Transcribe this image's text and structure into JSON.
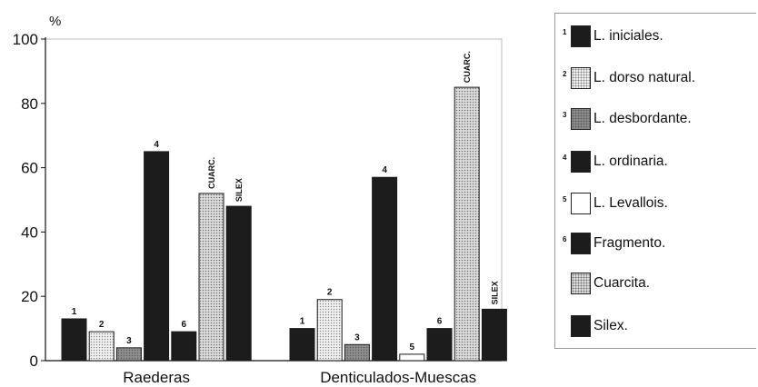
{
  "chart_data": {
    "type": "bar",
    "ylabel": "%",
    "ylim": [
      0,
      100
    ],
    "yticks": [
      0,
      20,
      40,
      60,
      80,
      100
    ],
    "groups": [
      {
        "label": "Raederas",
        "bars": [
          {
            "key": "1",
            "value": 13,
            "label": "1",
            "series": "L. iniciales."
          },
          {
            "key": "2",
            "value": 9,
            "label": "2",
            "series": "L. dorso natural."
          },
          {
            "key": "3",
            "value": 4,
            "label": "3",
            "series": "L. desbordante."
          },
          {
            "key": "4",
            "value": 65,
            "label": "4",
            "series": "L. ordinaria."
          },
          {
            "key": "6",
            "value": 9,
            "label": "6",
            "series": "Fragmento."
          },
          {
            "key": "cuarc",
            "value": 52,
            "label": "CUARC.",
            "series": "Cuarcita."
          },
          {
            "key": "silex",
            "value": 48,
            "label": "SILEX",
            "series": "Silex."
          }
        ]
      },
      {
        "label": "Denticulados-Muescas",
        "bars": [
          {
            "key": "1",
            "value": 10,
            "label": "1",
            "series": "L. iniciales."
          },
          {
            "key": "2",
            "value": 19,
            "label": "2",
            "series": "L. dorso natural."
          },
          {
            "key": "3",
            "value": 5,
            "label": "3",
            "series": "L. desbordante."
          },
          {
            "key": "4",
            "value": 57,
            "label": "4",
            "series": "L. ordinaria."
          },
          {
            "key": "5",
            "value": 2,
            "label": "5",
            "series": "L. Levallois."
          },
          {
            "key": "6",
            "value": 10,
            "label": "6",
            "series": "Fragmento."
          },
          {
            "key": "cuarc",
            "value": 85,
            "label": "CUARC.",
            "series": "Cuarcita."
          },
          {
            "key": "silex",
            "value": 16,
            "label": "SILEX",
            "series": "Silex."
          }
        ]
      }
    ],
    "legend": {
      "position": "right",
      "entries": [
        {
          "num": "1",
          "label": "L. iniciales.",
          "pattern": "dark"
        },
        {
          "num": "2",
          "label": "L. dorso natural.",
          "pattern": "dots"
        },
        {
          "num": "3",
          "label": "L. desbordante.",
          "pattern": "grey"
        },
        {
          "num": "4",
          "label": "L. ordinaria.",
          "pattern": "dark"
        },
        {
          "num": "5",
          "label": "L. Levallois.",
          "pattern": "white"
        },
        {
          "num": "6",
          "label": "Fragmento.",
          "pattern": "dark"
        },
        {
          "num": "",
          "label": "Cuarcita.",
          "pattern": "quartz"
        },
        {
          "num": "",
          "label": "Silex.",
          "pattern": "dark"
        }
      ]
    }
  }
}
